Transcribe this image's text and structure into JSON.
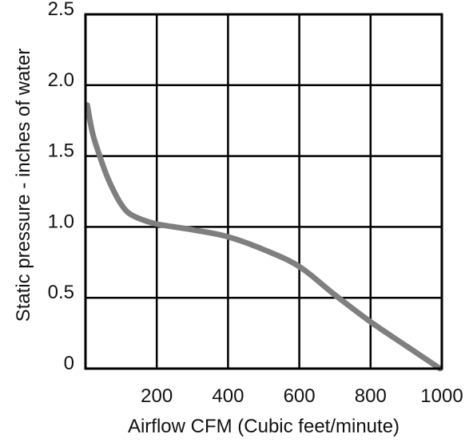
{
  "chart_data": {
    "type": "line",
    "xlabel": "Airflow CFM (Cubic feet/minute)",
    "ylabel": "Static pressure - inches of water",
    "xlim": [
      0,
      1000
    ],
    "ylim": [
      0,
      2.5
    ],
    "x_ticks": [
      200,
      400,
      600,
      800,
      1000
    ],
    "x_tick_labels": [
      "200",
      "400",
      "600",
      "800",
      "1000"
    ],
    "y_ticks": [
      0,
      0.5,
      1.0,
      1.5,
      2.0,
      2.5
    ],
    "y_tick_labels": [
      "0",
      "0.5",
      "1.0",
      "1.5",
      "2.0",
      "2.5"
    ],
    "grid": true,
    "series": [
      {
        "color": "#7f7f7f",
        "x": [
          5,
          20,
          40,
          60,
          80,
          100,
          120,
          150,
          200,
          300,
          400,
          500,
          600,
          700,
          800,
          900,
          995
        ],
        "y": [
          1.86,
          1.66,
          1.5,
          1.36,
          1.25,
          1.16,
          1.1,
          1.06,
          1.02,
          0.98,
          0.93,
          0.84,
          0.72,
          0.52,
          0.33,
          0.16,
          0.0
        ]
      }
    ]
  }
}
